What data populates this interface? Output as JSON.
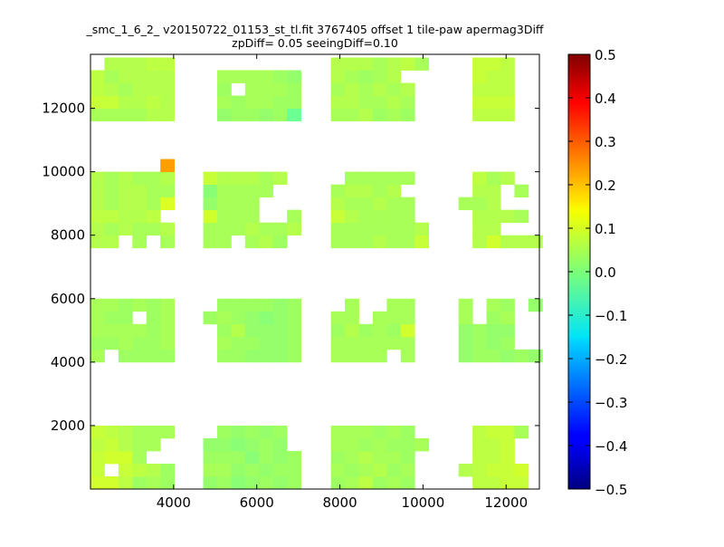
{
  "chart_data": {
    "type": "heatmap",
    "title_lines": [
      "_smc_1_6_2_ v20150722_01153_st_tl.fit 3767405 offset 1 tile-paw apermag3Diff",
      "zpDiff= 0.05 seeingDiff=0.10"
    ],
    "xlim": [
      2000,
      12800
    ],
    "ylim": [
      0,
      13700
    ],
    "x_ticks": [
      4000,
      6000,
      8000,
      10000,
      12000
    ],
    "y_ticks": [
      2000,
      4000,
      6000,
      8000,
      10000,
      12000
    ],
    "x_tick_labels": [
      "4000",
      "6000",
      "8000",
      "10000",
      "12000"
    ],
    "y_tick_labels": [
      "2000",
      "4000",
      "6000",
      "8000",
      "10000",
      "12000"
    ],
    "colorbar": {
      "colormap": "jet",
      "range": [
        -0.5,
        0.5
      ],
      "ticks": [
        0.5,
        0.4,
        0.3,
        0.2,
        0.1,
        0.0,
        -0.1,
        -0.2,
        -0.3,
        -0.4,
        -0.5
      ],
      "tick_labels": [
        "0.5",
        "0.4",
        "0.3",
        "0.2",
        "0.1",
        "0.0",
        "−0.1",
        "−0.2",
        "−0.3",
        "−0.4",
        "−0.5"
      ]
    },
    "cell_width": 336,
    "cell_height": 400,
    "columns_x_start": [
      2000,
      2336,
      2672,
      3008,
      3344,
      3680,
      4712,
      5048,
      5384,
      5720,
      6056,
      6392,
      6728,
      7784,
      8120,
      8456,
      8792,
      9128,
      9464,
      9800,
      10856,
      11192,
      11528,
      11864,
      12200,
      12536
    ],
    "rows_y_start": [
      0,
      400,
      800,
      1200,
      1600,
      4000,
      4400,
      4800,
      5200,
      5600,
      7600,
      8000,
      8400,
      8800,
      9200,
      9600,
      10000,
      11600,
      12000,
      12400,
      12800,
      13200
    ],
    "rows": [
      "0.08 0.08 0.06 0.03 0.04 0.03 0.02 0.03 0.01 0.02 0.03 0.02 0.03 0.03 0.04 0.06 0.03 0.04 0.03 . . 0.06 0.06 0.07 0.07 .",
      "0.07 . 0.07 0.06 0.05 0.03 0.04 0.04 0.02 0.03 0.02 0.03 0.03 0.04 0.03 0.04 0.05 0.03 0.04 . 0.05 0.06 0.07 0.07 0.08 .",
      "0.07 0.08 0.08 0.04 . . 0.03 0.03 0.03 0.01 0.03 0.02 0.03 0.03 0.04 0.05 0.04 0.04 0.03 . . 0.06 0.06 0.07 . .",
      "0.06 0.07 0.05 0.04 0.04 . 0.02 0.02 0.01 0.02 0.03 0.02 . 0.04 0.04 0.03 0.04 0.03 0.03 0.04 . 0.06 0.06 0.07 . .",
      "0.07 0.06 0.05 0.04 0.04 0.04 . 0.03 0.02 0.03 0.02 0.03 . 0.04 0.04 0.04 0.03 0.04 0.03 . . 0.06 0.07 0.07 0.04 .",
      "0.04 . 0.03 0.03 0.03 0.03 . 0.03 0.03 0.02 0.02 0.02 0.03 0.04 0.04 0.04 0.04 . 0.04 . 0.02 0.03 0.03 0.02 0.03 0.02",
      "0.03 0.03 0.04 0.03 0.03 0.04 . 0.04 0.03 0.03 0.02 0.02 0.03 0.04 0.04 0.04 0.04 0.04 0.04 . 0.02 0.03 0.02 0.03 . .",
      "0.04 0.04 0.04 0.04 0.03 0.04 . 0.03 0.05 0.02 0.02 0.02 0.03 0.03 0.05 0.03 0.04 0.03 0.08 . 0.02 0.03 0.02 0.02 . .",
      "0.04 0.03 0.03 . 0.03 0.04 0.03 0.04 0.03 0.02 0.01 0.02 0.03 0.04 0.04 . 0.04 0.04 0.04 . 0.04 . 0.03 0.04 . .",
      "0.04 0.04 0.03 0.04 0.03 0.04 . 0.03 0.03 0.03 0.03 0.02 0.03 . 0.04 . . 0.04 0.04 . 0.04 . 0.04 0.03 . 0.02",
      "0.05 0.05 . 0.04 . 0.04 0.04 0.04 . 0.04 0.05 0.03 . 0.04 0.04 0.04 0.05 0.04 0.04 0.07 . 0.05 0.08 0.05 0.05 0.05",
      "0.05 0.04 0.05 0.04 0.04 0.05 0.04 0.04 0.04 0.05 0.04 0.04 0.05 0.04 0.04 0.04 0.04 0.04 0.04 0.05 . 0.05 0.05 . . .",
      "0.06 0.06 0.05 0.05 0.06 . 0.08 0.04 0.04 0.04 . . 0.04 0.07 0.05 0.04 0.04 0.04 0.04 . . 0.05 0.05 0.05 0.04 .",
      "0.05 0.04 0.05 0.05 0.04 0.09 0.02 0.04 0.04 0.04 . . . 0.05 0.04 0.04 0.05 0.04 0.04 . 0.04 0.04 0.05 . . .",
      "0.05 0.04 0.05 0.05 0.04 0.04 0.01 0.04 0.04 0.04 0.04 . . 0.04 0.05 0.05 0.04 0.05 . . . 0.05 0.05 . 0.04 .",
      "0.05 0.04 0.05 0.04 0.04 0.05 0.07 0.05 0.05 0.05 0.04 0.05 . . 0.04 0.04 0.04 0.04 0.04 . . 0.06 0.04 0.05 . .",
      ". . . . . 0.22 . . . . . . . . . . . . . . . . . . . .",
      "0.04 0.04 0.04 0.04 0.05 0.05 . 0.02 0.03 0.03 0.02 0.03 -0.02 0.04 0.04 0.05 0.03 0.04 0.03 . . 0.06 0.06 0.06 . .",
      "0.07 0.07 0.05 0.05 0.06 0.05 . 0.04 0.03 0.04 0.04 0.03 0.03 0.05 0.05 0.04 0.04 0.05 0.04 . . 0.07 0.07 0.07 . .",
      "0.06 0.05 0.04 0.05 0.05 0.05 . 0.03 . 0.04 0.04 0.04 0.03 0.04 0.05 0.04 0.05 0.04 0.05 . . 0.06 0.06 0.06 . .",
      "0.06 0.04 0.05 0.05 0.05 0.05 . 0.04 0.04 0.04 0.04 0.03 0.02 0.05 0.04 0.03 0.04 0.05 . . . 0.07 0.06 0.06 . .",
      ". 0.05 0.05 0.05 0.06 0.06 . . . . . . . 0.05 0.05 0.05 0.04 0.05 0.06 0.04 . 0.07 0.07 0.06 . ."
    ]
  }
}
